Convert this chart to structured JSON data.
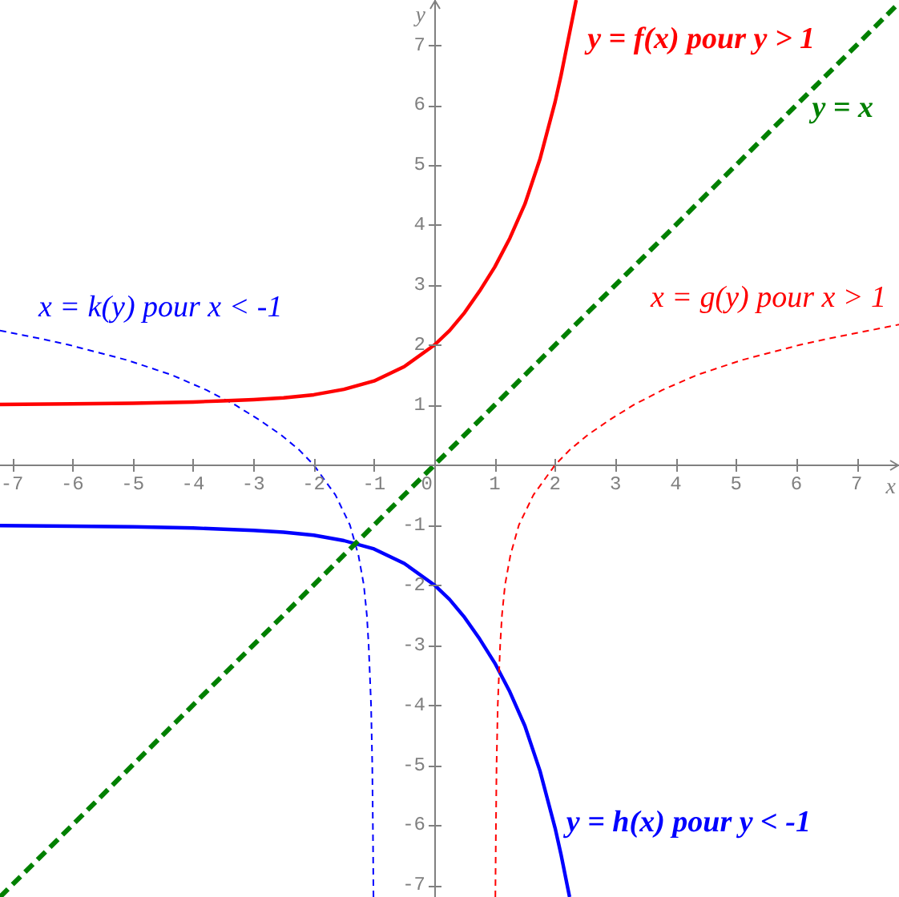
{
  "chart_data": {
    "type": "line",
    "xlabel": "x",
    "ylabel": "y",
    "marker": "none",
    "xlim": [
      -7.2,
      7.7
    ],
    "ylim": [
      -7.2,
      7.75
    ],
    "xticks": [
      -7,
      -6,
      -5,
      -4,
      -3,
      -2,
      -1,
      0,
      1,
      2,
      3,
      4,
      5,
      6,
      7
    ],
    "yticks": [
      -7,
      -6,
      -5,
      -4,
      -3,
      -2,
      -1,
      {
        "value": 0,
        "label": null
      },
      1,
      2,
      3,
      4,
      5,
      6,
      7
    ],
    "series": [
      {
        "name": "y = f(x) pour y > 1",
        "color": "#ff0000",
        "line_style": "solid",
        "x": [
          -7.2,
          -6,
          -5,
          -4,
          -3.5,
          -3,
          -2.5,
          -2,
          -1.5,
          -1,
          -0.5,
          0,
          0.25,
          0.5,
          0.75,
          1,
          1.25,
          1.5,
          1.75,
          2,
          2.1,
          2.2,
          2.3,
          2.35
        ],
        "values": [
          1.01,
          1.02,
          1.03,
          1.05,
          1.07,
          1.09,
          1.12,
          1.17,
          1.26,
          1.4,
          1.64,
          2.0,
          2.24,
          2.54,
          2.9,
          3.3,
          3.78,
          4.35,
          5.1,
          6.05,
          6.5,
          7.0,
          7.5,
          7.75
        ]
      },
      {
        "name": "y = x",
        "color": "#008000",
        "line_style": "dashed",
        "x": [
          -7.2,
          7.7
        ],
        "values": [
          -7.2,
          7.7
        ]
      },
      {
        "name": "x = g(y) pour x > 1",
        "color": "#ff0000",
        "line_style": "dashed",
        "x": [
          1.01,
          1.02,
          1.03,
          1.05,
          1.07,
          1.09,
          1.12,
          1.17,
          1.26,
          1.4,
          1.64,
          2.0,
          2.24,
          2.54,
          2.9,
          3.3,
          3.78,
          4.35,
          5.1,
          6.05,
          6.5,
          7.0,
          7.5,
          7.7
        ],
        "values": [
          -7.2,
          -6,
          -5,
          -4,
          -3.5,
          -3,
          -2.5,
          -2,
          -1.5,
          -1,
          -0.5,
          0,
          0.25,
          0.5,
          0.75,
          1,
          1.25,
          1.5,
          1.75,
          2,
          2.1,
          2.2,
          2.3,
          2.34
        ]
      },
      {
        "name": "x = k(y) pour x < -1",
        "color": "#0000ff",
        "line_style": "dashed",
        "x": [
          -1.01,
          -1.02,
          -1.03,
          -1.05,
          -1.07,
          -1.09,
          -1.12,
          -1.17,
          -1.26,
          -1.4,
          -1.64,
          -2.0,
          -2.24,
          -2.54,
          -2.9,
          -3.3,
          -3.78,
          -4.35,
          -5.1,
          -6.05,
          -6.5,
          -7.0,
          -7.2
        ],
        "values": [
          -7.2,
          -6,
          -5,
          -4,
          -3.5,
          -3,
          -2.5,
          -2,
          -1.5,
          -1,
          -0.5,
          0,
          0.25,
          0.5,
          0.75,
          1,
          1.25,
          1.5,
          1.75,
          2,
          2.1,
          2.2,
          2.24
        ]
      },
      {
        "name": "y = h(x) pour y < -1",
        "color": "#0000ff",
        "line_style": "solid",
        "x": [
          -7.2,
          -6,
          -5,
          -4,
          -3.5,
          -3,
          -2.5,
          -2,
          -1.5,
          -1,
          -0.5,
          0,
          0.25,
          0.5,
          0.75,
          1,
          1.25,
          1.5,
          1.75,
          2,
          2.1,
          2.2,
          2.24
        ],
        "values": [
          -1.01,
          -1.02,
          -1.03,
          -1.05,
          -1.07,
          -1.09,
          -1.12,
          -1.17,
          -1.26,
          -1.4,
          -1.64,
          -2.0,
          -2.24,
          -2.54,
          -2.9,
          -3.3,
          -3.78,
          -4.35,
          -5.1,
          -6.05,
          -6.5,
          -7.0,
          -7.2
        ]
      }
    ]
  }
}
